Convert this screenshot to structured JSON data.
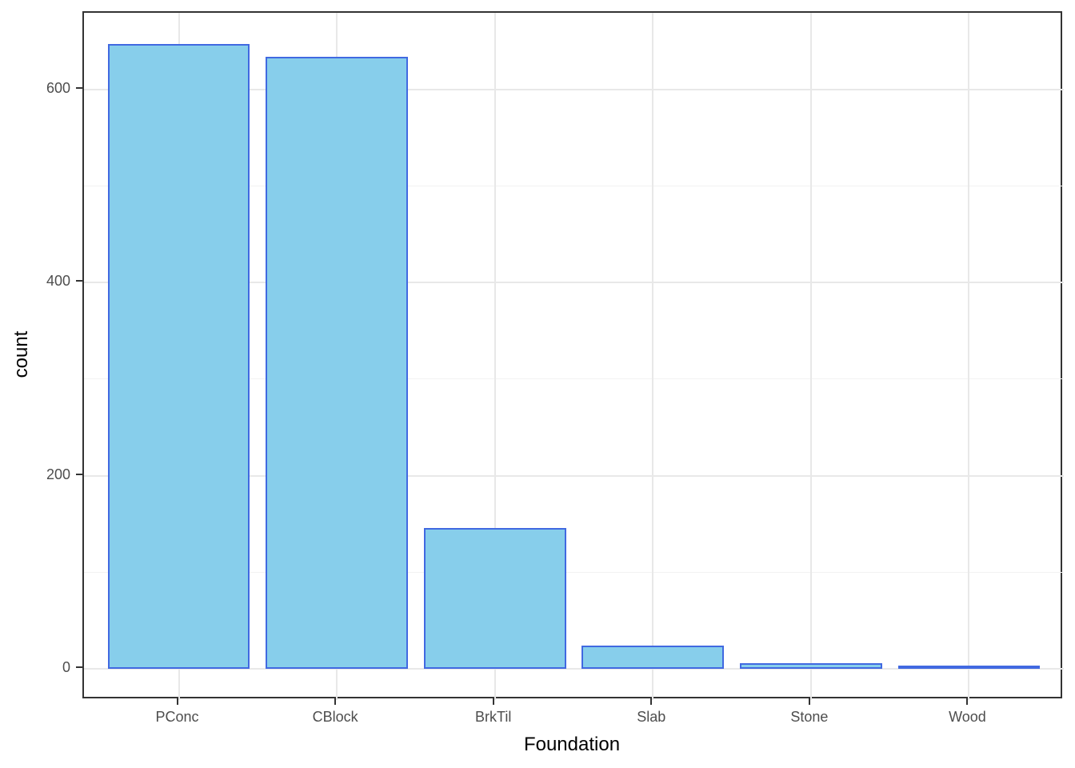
{
  "chart_data": {
    "type": "bar",
    "title": "",
    "xlabel": "Foundation",
    "ylabel": "count",
    "categories": [
      "PConc",
      "CBlock",
      "BrkTil",
      "Slab",
      "Stone",
      "Wood"
    ],
    "values": [
      647,
      634,
      146,
      24,
      6,
      3
    ],
    "y_ticks_major": [
      0,
      200,
      400,
      600
    ],
    "y_ticks_minor": [
      100,
      300,
      500
    ],
    "ylim": [
      -32.35,
      679.35
    ],
    "grid": "on",
    "legend": "none",
    "bar_width_fraction": 0.9,
    "colors": {
      "bar_fill": "#87CEEB",
      "bar_stroke": "#4169E1",
      "grid_major": "#E8E8E8",
      "grid_minor": "#F2F2F2",
      "panel_border": "#333333",
      "tick_mark": "#333333",
      "tick_label": "#4D4D4D",
      "axis_title": "#000000",
      "background": "#FFFFFF"
    }
  }
}
